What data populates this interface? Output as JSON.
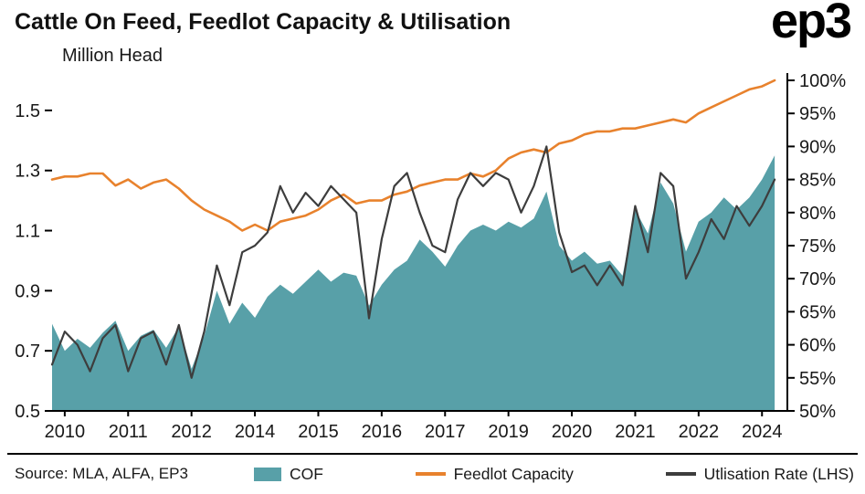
{
  "header": {
    "title": "Cattle On Feed, Feedlot Capacity & Utilisation",
    "logo": "ep3"
  },
  "footer": {
    "source": "Source: MLA, ALFA, EP3"
  },
  "chart_data": {
    "type": "area",
    "title": "Cattle On Feed, Feedlot Capacity & Utilisation",
    "y_left_label": "Million Head",
    "x_start": 2010,
    "x_step": 0.25,
    "x_range": [
      2010,
      2024.5
    ],
    "y_left_range": [
      0.5,
      1.6
    ],
    "y_right_range": [
      50,
      100
    ],
    "y_left_tick_values": [
      0.5,
      0.7,
      0.9,
      1.1,
      1.3,
      1.5
    ],
    "y_left_tick_labels": [
      "0.5",
      "0.7",
      "0.9",
      "1.1",
      "1.3",
      "1.5"
    ],
    "y_right_tick_values": [
      50,
      55,
      60,
      65,
      70,
      75,
      80,
      85,
      90,
      95,
      100
    ],
    "y_right_tick_labels": [
      "50%",
      "55%",
      "60%",
      "65%",
      "70%",
      "75%",
      "80%",
      "85%",
      "90%",
      "95%",
      "100%"
    ],
    "x_tick_values": [
      2010.25,
      2011.5,
      2012.75,
      2014,
      2015.25,
      2016.5,
      2017.75,
      2019,
      2020.25,
      2021.5,
      2022.75,
      2024
    ],
    "x_tick_labels": [
      "2010",
      "2011",
      "2012",
      "2014",
      "2015",
      "2016",
      "2017",
      "2019",
      "2020",
      "2021",
      "2022",
      "2024"
    ],
    "grid": false,
    "legend_position": "bottom",
    "series": [
      {
        "name": "COF",
        "type": "area",
        "axis": "left",
        "color": "#58a0a8",
        "values": [
          0.79,
          0.7,
          0.74,
          0.71,
          0.76,
          0.8,
          0.7,
          0.75,
          0.77,
          0.71,
          0.78,
          0.64,
          0.75,
          0.9,
          0.79,
          0.86,
          0.81,
          0.88,
          0.92,
          0.89,
          0.93,
          0.97,
          0.93,
          0.96,
          0.95,
          0.85,
          0.92,
          0.97,
          1.0,
          1.07,
          1.03,
          0.98,
          1.05,
          1.1,
          1.12,
          1.1,
          1.13,
          1.11,
          1.14,
          1.23,
          1.05,
          1.0,
          1.03,
          0.99,
          1.0,
          0.95,
          1.17,
          1.09,
          1.26,
          1.19,
          1.03,
          1.13,
          1.16,
          1.21,
          1.17,
          1.21,
          1.27,
          1.35
        ]
      },
      {
        "name": "Feedlot Capacity",
        "type": "line",
        "axis": "left",
        "color": "#e8822d",
        "width": 2.6,
        "values": [
          1.27,
          1.28,
          1.28,
          1.29,
          1.29,
          1.25,
          1.27,
          1.24,
          1.26,
          1.27,
          1.24,
          1.2,
          1.17,
          1.15,
          1.13,
          1.1,
          1.12,
          1.1,
          1.13,
          1.14,
          1.15,
          1.17,
          1.2,
          1.22,
          1.19,
          1.2,
          1.2,
          1.22,
          1.23,
          1.25,
          1.26,
          1.27,
          1.27,
          1.29,
          1.28,
          1.3,
          1.34,
          1.36,
          1.37,
          1.36,
          1.39,
          1.4,
          1.42,
          1.43,
          1.43,
          1.44,
          1.44,
          1.45,
          1.46,
          1.47,
          1.46,
          1.49,
          1.51,
          1.53,
          1.55,
          1.57,
          1.58,
          1.6
        ]
      },
      {
        "name": "Utlisation Rate (LHS)",
        "type": "line",
        "axis": "right",
        "color": "#3d3d3d",
        "width": 2.2,
        "values": [
          57,
          62,
          60,
          56,
          61,
          63,
          56,
          61,
          62,
          57,
          63,
          55,
          62,
          72,
          66,
          74,
          75,
          77,
          84,
          80,
          83,
          81,
          84,
          82,
          80,
          64,
          76,
          84,
          86,
          80,
          75,
          74,
          82,
          86,
          84,
          86,
          85,
          80,
          84,
          90,
          77,
          71,
          72,
          69,
          72,
          69,
          81,
          74,
          86,
          84,
          70,
          74,
          79,
          76,
          81,
          78,
          81,
          85
        ]
      }
    ]
  }
}
